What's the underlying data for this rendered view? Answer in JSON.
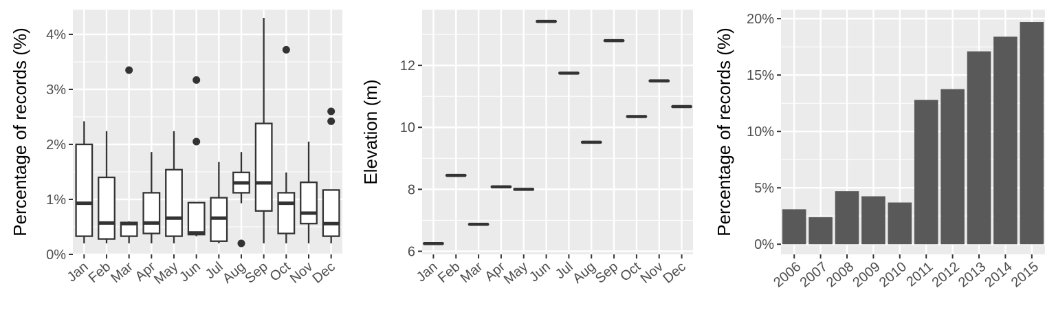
{
  "chart_data": [
    {
      "type": "box",
      "ylabel": "Percentage of records (%)",
      "ylim": [
        0,
        4.45
      ],
      "yticks": [
        0,
        1,
        2,
        3,
        4
      ],
      "ytick_labels": [
        "0%",
        "1%",
        "2%",
        "3%",
        "4%"
      ],
      "categories": [
        "Jan",
        "Feb",
        "Mar",
        "Apr",
        "May",
        "Jun",
        "Jul",
        "Aug",
        "Sep",
        "Oct",
        "Nov",
        "Dec"
      ],
      "boxes": [
        {
          "min": 0.2,
          "q1": 0.33,
          "median": 0.93,
          "q3": 2.0,
          "max": 2.42,
          "outliers": []
        },
        {
          "min": 0.2,
          "q1": 0.28,
          "median": 0.57,
          "q3": 1.4,
          "max": 2.24,
          "outliers": []
        },
        {
          "min": 0.2,
          "q1": 0.33,
          "median": 0.56,
          "q3": 0.58,
          "max": 0.6,
          "outliers": [
            3.35
          ]
        },
        {
          "min": 0.2,
          "q1": 0.38,
          "median": 0.57,
          "q3": 1.12,
          "max": 1.86,
          "outliers": []
        },
        {
          "min": 0.2,
          "q1": 0.33,
          "median": 0.66,
          "q3": 1.54,
          "max": 2.24,
          "outliers": []
        },
        {
          "min": 0.33,
          "q1": 0.36,
          "median": 0.39,
          "q3": 0.94,
          "max": 0.94,
          "outliers": [
            2.05,
            3.17
          ]
        },
        {
          "min": 0.2,
          "q1": 0.24,
          "median": 0.66,
          "q3": 1.03,
          "max": 1.68,
          "outliers": []
        },
        {
          "min": 0.93,
          "q1": 1.12,
          "median": 1.3,
          "q3": 1.49,
          "max": 1.86,
          "outliers": [
            0.2
          ]
        },
        {
          "min": 0.2,
          "q1": 0.79,
          "median": 1.3,
          "q3": 2.38,
          "max": 4.3,
          "outliers": []
        },
        {
          "min": 0.2,
          "q1": 0.38,
          "median": 0.93,
          "q3": 1.12,
          "max": 1.49,
          "outliers": [
            3.72
          ]
        },
        {
          "min": 0.2,
          "q1": 0.56,
          "median": 0.75,
          "q3": 1.31,
          "max": 2.05,
          "outliers": []
        },
        {
          "min": 0.2,
          "q1": 0.33,
          "median": 0.56,
          "q3": 1.17,
          "max": 1.17,
          "outliers": [
            2.42,
            2.6
          ]
        }
      ]
    },
    {
      "type": "box",
      "ylabel": "Elevation (m)",
      "ylim": [
        5.9,
        13.8
      ],
      "yticks": [
        6,
        8,
        10,
        12
      ],
      "ytick_labels": [
        "6",
        "8",
        "10",
        "12"
      ],
      "categories": [
        "Jan",
        "Feb",
        "Mar",
        "Apr",
        "May",
        "Jun",
        "Jul",
        "Aug",
        "Sep",
        "Oct",
        "Nov",
        "Dec"
      ],
      "values": [
        6.25,
        8.45,
        6.87,
        8.08,
        8.0,
        13.42,
        11.75,
        9.52,
        12.8,
        10.35,
        11.5,
        10.67
      ]
    },
    {
      "type": "bar",
      "ylabel": "Percentage of records (%)",
      "ylim": [
        -0.9,
        20.8
      ],
      "yticks": [
        0,
        5,
        10,
        15,
        20
      ],
      "ytick_labels": [
        "0%",
        "5%",
        "10%",
        "15%",
        "20%"
      ],
      "categories": [
        "2006",
        "2007",
        "2008",
        "2009",
        "2010",
        "2011",
        "2012",
        "2013",
        "2014",
        "2015"
      ],
      "values": [
        3.1,
        2.4,
        4.7,
        4.25,
        3.7,
        12.8,
        13.75,
        17.1,
        18.4,
        19.7
      ]
    }
  ],
  "colors": {
    "panel": "#ebebeb",
    "grid": "#ffffff",
    "ink": "#333333",
    "bar_fill": "#595959",
    "tick_text": "#4d4d4d",
    "title_text": "#000000"
  }
}
